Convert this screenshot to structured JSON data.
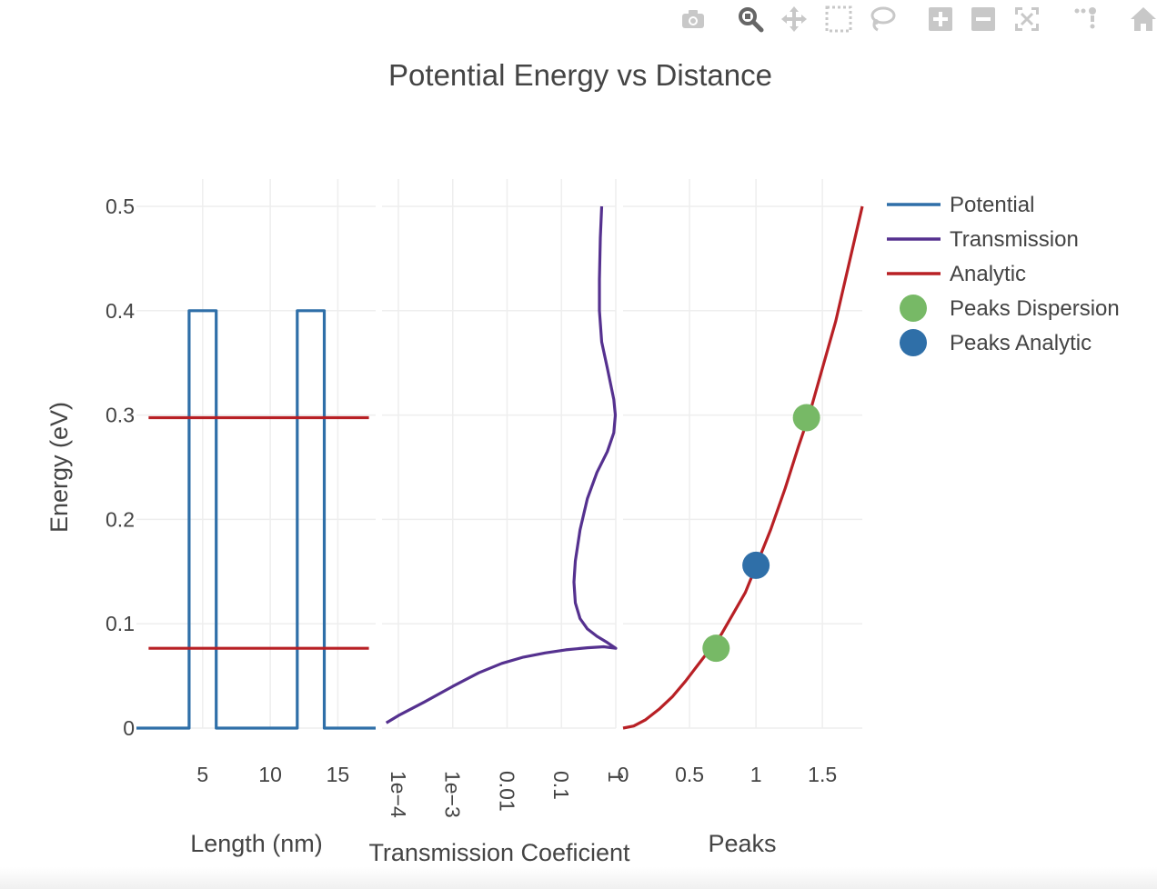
{
  "modebar": {
    "buttons": [
      {
        "name": "download-plot-button",
        "icon": "camera-icon"
      },
      {
        "name": "zoom-button",
        "icon": "magnifier-icon",
        "active": true
      },
      {
        "name": "pan-button",
        "icon": "move-arrows-icon"
      },
      {
        "name": "box-select-button",
        "icon": "dashed-box-icon"
      },
      {
        "name": "lasso-select-button",
        "icon": "lasso-icon"
      },
      {
        "name": "zoom-in-button",
        "icon": "plus-square-icon"
      },
      {
        "name": "zoom-out-button",
        "icon": "minus-square-icon"
      },
      {
        "name": "autoscale-button",
        "icon": "autoscale-icon"
      },
      {
        "name": "reset-axes-button",
        "icon": "dots-icon"
      },
      {
        "name": "home-button",
        "icon": "home-icon"
      }
    ],
    "icon_color": "#c8c8c8",
    "active_icon_color": "#666666"
  },
  "chart_data": {
    "type": "line",
    "title": "Potential Energy vs Distance",
    "ylabel": "Energy (eV)",
    "ylim": [
      0,
      0.5
    ],
    "yticks": [
      0,
      0.1,
      0.2,
      0.3,
      0.4,
      0.5
    ],
    "ytick_labels": [
      "0",
      "0.1",
      "0.2",
      "0.3",
      "0.4",
      "0.5"
    ],
    "grid": true,
    "legend_position": "top-right",
    "subplots": [
      {
        "xlabel": "Length (nm)",
        "xlim": [
          0.1,
          17.8
        ],
        "xscale": "linear",
        "xticks": [
          5,
          10,
          15
        ],
        "xtick_labels": [
          "5",
          "10",
          "15"
        ]
      },
      {
        "xlabel": "Transmission Coeficient",
        "xlim": [
          5e-05,
          1
        ],
        "xscale": "log",
        "xticks": [
          0.0001,
          0.001,
          0.01,
          0.1,
          1
        ],
        "xtick_labels": [
          "1e−4",
          "1e−3",
          "0.01",
          "0.1",
          "1"
        ]
      },
      {
        "xlabel": "Peaks",
        "xlim": [
          0,
          1.8
        ],
        "xscale": "linear",
        "xticks": [
          0,
          0.5,
          1,
          1.5
        ],
        "xtick_labels": [
          "0",
          "0.5",
          "1",
          "1.5"
        ]
      }
    ],
    "series": [
      {
        "name": "Potential",
        "subplot": 0,
        "color": "#2f6fa8",
        "mode": "line",
        "x": [
          0.1,
          4,
          4,
          6,
          6,
          12,
          12,
          14,
          14,
          17.8
        ],
        "y": [
          0,
          0,
          0.4,
          0.4,
          0,
          0,
          0.4,
          0.4,
          0,
          0
        ]
      },
      {
        "name": "Transmission",
        "subplot": 1,
        "color": "#55318f",
        "mode": "line",
        "x": [
          6e-05,
          0.0001,
          0.0003,
          0.001,
          0.003,
          0.008,
          0.02,
          0.05,
          0.12,
          0.3,
          0.6,
          1,
          0.7,
          0.45,
          0.3,
          0.22,
          0.18,
          0.17,
          0.18,
          0.22,
          0.3,
          0.45,
          0.7,
          0.92,
          0.98,
          0.92,
          0.7,
          0.55,
          0.5,
          0.5,
          0.52,
          0.55
        ],
        "y": [
          0.005,
          0.012,
          0.025,
          0.04,
          0.053,
          0.062,
          0.068,
          0.072,
          0.075,
          0.077,
          0.078,
          0.0765,
          0.082,
          0.088,
          0.095,
          0.105,
          0.12,
          0.14,
          0.16,
          0.19,
          0.22,
          0.245,
          0.265,
          0.283,
          0.3,
          0.315,
          0.345,
          0.37,
          0.4,
          0.43,
          0.47,
          0.5
        ]
      },
      {
        "name": "Analytic",
        "subplot": 0,
        "color": "#b82025",
        "mode": "hlines",
        "x_range": [
          1.0,
          17.3
        ],
        "y_values": [
          0.0765,
          0.2975
        ]
      },
      {
        "name": "Analytic",
        "subplot": 2,
        "color": "#b82025",
        "mode": "line",
        "showlegend": false,
        "x": [
          0,
          0.08,
          0.17,
          0.27,
          0.37,
          0.47,
          0.56,
          0.65,
          0.74,
          0.83,
          0.92,
          1.0,
          1.11,
          1.22,
          1.32,
          1.4,
          1.5,
          1.6,
          1.7,
          1.8
        ],
        "y": [
          0,
          0.002,
          0.008,
          0.018,
          0.03,
          0.045,
          0.06,
          0.075,
          0.09,
          0.11,
          0.13,
          0.155,
          0.19,
          0.23,
          0.27,
          0.3,
          0.345,
          0.39,
          0.445,
          0.5
        ]
      },
      {
        "name": "Peaks Dispersion",
        "subplot": 2,
        "color": "#77b966",
        "mode": "markers",
        "x": [
          0.7,
          1.38
        ],
        "y": [
          0.0765,
          0.2975
        ]
      },
      {
        "name": "Peaks Analytic",
        "subplot": 2,
        "color": "#2f6fa8",
        "mode": "markers",
        "x": [
          1.0
        ],
        "y": [
          0.156
        ]
      }
    ],
    "legend": [
      {
        "name": "Potential",
        "symbol": "line",
        "color": "#2f6fa8"
      },
      {
        "name": "Transmission",
        "symbol": "line",
        "color": "#55318f"
      },
      {
        "name": "Analytic",
        "symbol": "line",
        "color": "#b82025"
      },
      {
        "name": "Peaks Dispersion",
        "symbol": "marker",
        "color": "#77b966"
      },
      {
        "name": "Peaks Analytic",
        "symbol": "marker",
        "color": "#2f6fa8"
      }
    ]
  }
}
